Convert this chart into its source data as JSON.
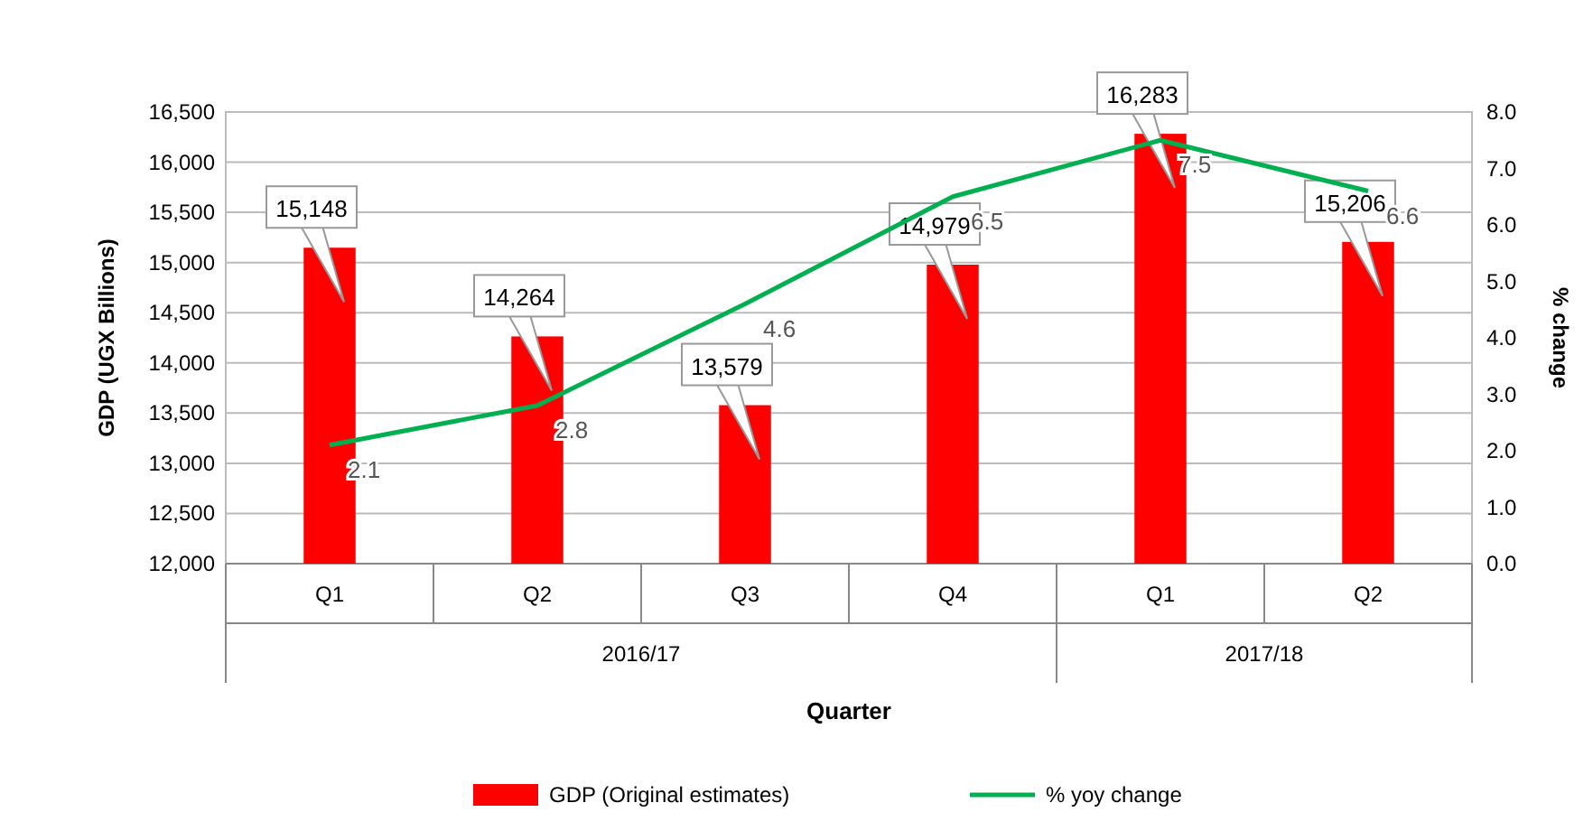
{
  "chart_data": {
    "type": "bar",
    "xlabel": "Quarter",
    "ylabel": "GDP  (UGX Billions)",
    "y2label": "% change",
    "categories": [
      "Q1",
      "Q2",
      "Q3",
      "Q4",
      "Q1",
      "Q2"
    ],
    "series": [
      {
        "name": "GDP  (Original estimates)",
        "color": "#ff0000",
        "values": [
          15148,
          14264,
          13579,
          14979,
          16283,
          15206
        ],
        "value_labels": [
          "15,148",
          "14,264",
          "13,579",
          "14,979",
          "16,283",
          "15,206"
        ]
      },
      {
        "name": "% yoy change",
        "type": "line",
        "axis": "y2",
        "color": "#00b050",
        "values": [
          2.1,
          2.8,
          4.6,
          6.5,
          7.5,
          6.6
        ],
        "value_labels": [
          "2.1",
          "2.8",
          "4.6",
          "6.5",
          "7.5",
          "6.6"
        ]
      }
    ],
    "annotations": [
      "2016/17",
      "2017/18"
    ],
    "ylim": [
      12000,
      16500
    ],
    "yticks": [
      {
        "value": 12000,
        "label": "12,000"
      },
      {
        "value": 12500,
        "label": "12,500"
      },
      {
        "value": 13000,
        "label": "13,000"
      },
      {
        "value": 13500,
        "label": "13,500"
      },
      {
        "value": 14000,
        "label": "14,000"
      },
      {
        "value": 14500,
        "label": "14,500"
      },
      {
        "value": 15000,
        "label": "15,000"
      },
      {
        "value": 15500,
        "label": "15,500"
      },
      {
        "value": 16000,
        "label": "16,000"
      },
      {
        "value": 16500,
        "label": "16,500"
      }
    ],
    "y2lim": [
      0,
      8
    ],
    "y2ticks": [
      {
        "value": 0,
        "label": "0.0"
      },
      {
        "value": 1,
        "label": "1.0"
      },
      {
        "value": 2,
        "label": "2.0"
      },
      {
        "value": 3,
        "label": "3.0"
      },
      {
        "value": 4,
        "label": "4.0"
      },
      {
        "value": 5,
        "label": "5.0"
      },
      {
        "value": 6,
        "label": "6.0"
      },
      {
        "value": 7,
        "label": "7.0"
      },
      {
        "value": 8,
        "label": "8.0"
      }
    ],
    "grid": "y",
    "legend": "bottom",
    "marker": "none",
    "line_style": "solid"
  }
}
